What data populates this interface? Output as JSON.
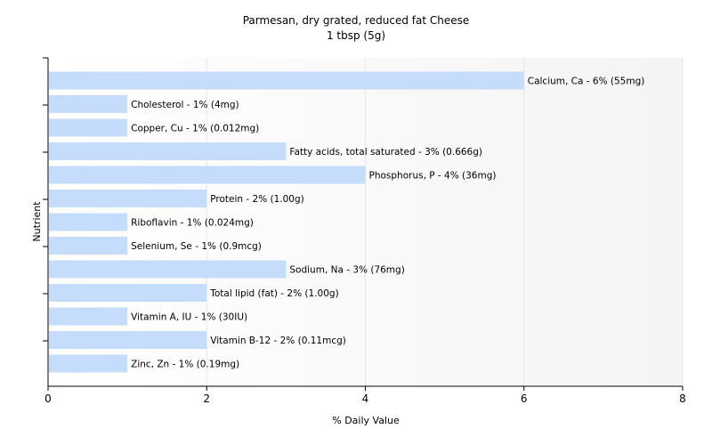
{
  "chart_data": {
    "type": "bar",
    "orientation": "horizontal",
    "title": "Parmesan, dry grated, reduced fat Cheese",
    "subtitle": "1 tbsp (5g)",
    "xlabel": "% Daily Value",
    "ylabel": "Nutrient",
    "xlim": [
      0,
      8
    ],
    "xticks": [
      "0",
      "2",
      "4",
      "6",
      "8"
    ],
    "grid": true,
    "bar_color": "#c6dcfb",
    "categories": [
      "Calcium, Ca",
      "Cholesterol",
      "Copper, Cu",
      "Fatty acids, total saturated",
      "Phosphorus, P",
      "Protein",
      "Riboflavin",
      "Selenium, Se",
      "Sodium, Na",
      "Total lipid (fat)",
      "Vitamin A, IU",
      "Vitamin B-12",
      "Zinc, Zn"
    ],
    "values": [
      6,
      1,
      1,
      3,
      4,
      2,
      1,
      1,
      3,
      2,
      1,
      2,
      1
    ],
    "labels": [
      "Calcium, Ca - 6% (55mg)",
      "Cholesterol - 1% (4mg)",
      "Copper, Cu - 1% (0.012mg)",
      "Fatty acids, total saturated - 3% (0.666g)",
      "Phosphorus, P - 4% (36mg)",
      "Protein - 2% (1.00g)",
      "Riboflavin - 1% (0.024mg)",
      "Selenium, Se - 1% (0.9mcg)",
      "Sodium, Na - 3% (76mg)",
      "Total lipid (fat) - 2% (1.00g)",
      "Vitamin A, IU - 1% (30IU)",
      "Vitamin B-12 - 2% (0.11mcg)",
      "Zinc, Zn - 1% (0.19mg)"
    ]
  }
}
